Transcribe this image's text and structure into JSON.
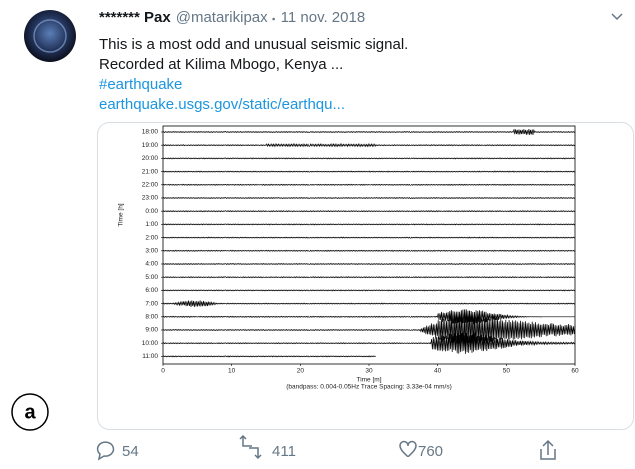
{
  "tweet": {
    "author_name": "******* Pax",
    "handle": "@matarikipax",
    "date": "11 nov. 2018",
    "text_lines": [
      "This is a most odd and unusual seismic signal.",
      "Recorded at Kilima Mbogo, Kenya ..."
    ],
    "hashtag": "#earthquake",
    "link": "earthquake.usgs.gov/static/earthqu...",
    "replies": 54,
    "retweets": 411,
    "likes": 760
  },
  "panel_label": "a",
  "chart_data": {
    "type": "helicorder",
    "categories": [
      "18:00",
      "19:00",
      "20:00",
      "21:00",
      "22:00",
      "23:00",
      "0:00",
      "1:00",
      "2:00",
      "3:00",
      "4:00",
      "5:00",
      "6:00",
      "7:00",
      "8:00",
      "9:00",
      "10:00",
      "11:00"
    ],
    "ylabel": "Time [h]",
    "xlabel": "Time [m]",
    "note": "(bandpass: 0.004-0.05Hz  Trace Spacing: 3.33e-04 mm/s)",
    "xlim": [
      0,
      60
    ],
    "xticks": [
      0,
      10,
      20,
      30,
      40,
      50,
      60
    ]
  }
}
